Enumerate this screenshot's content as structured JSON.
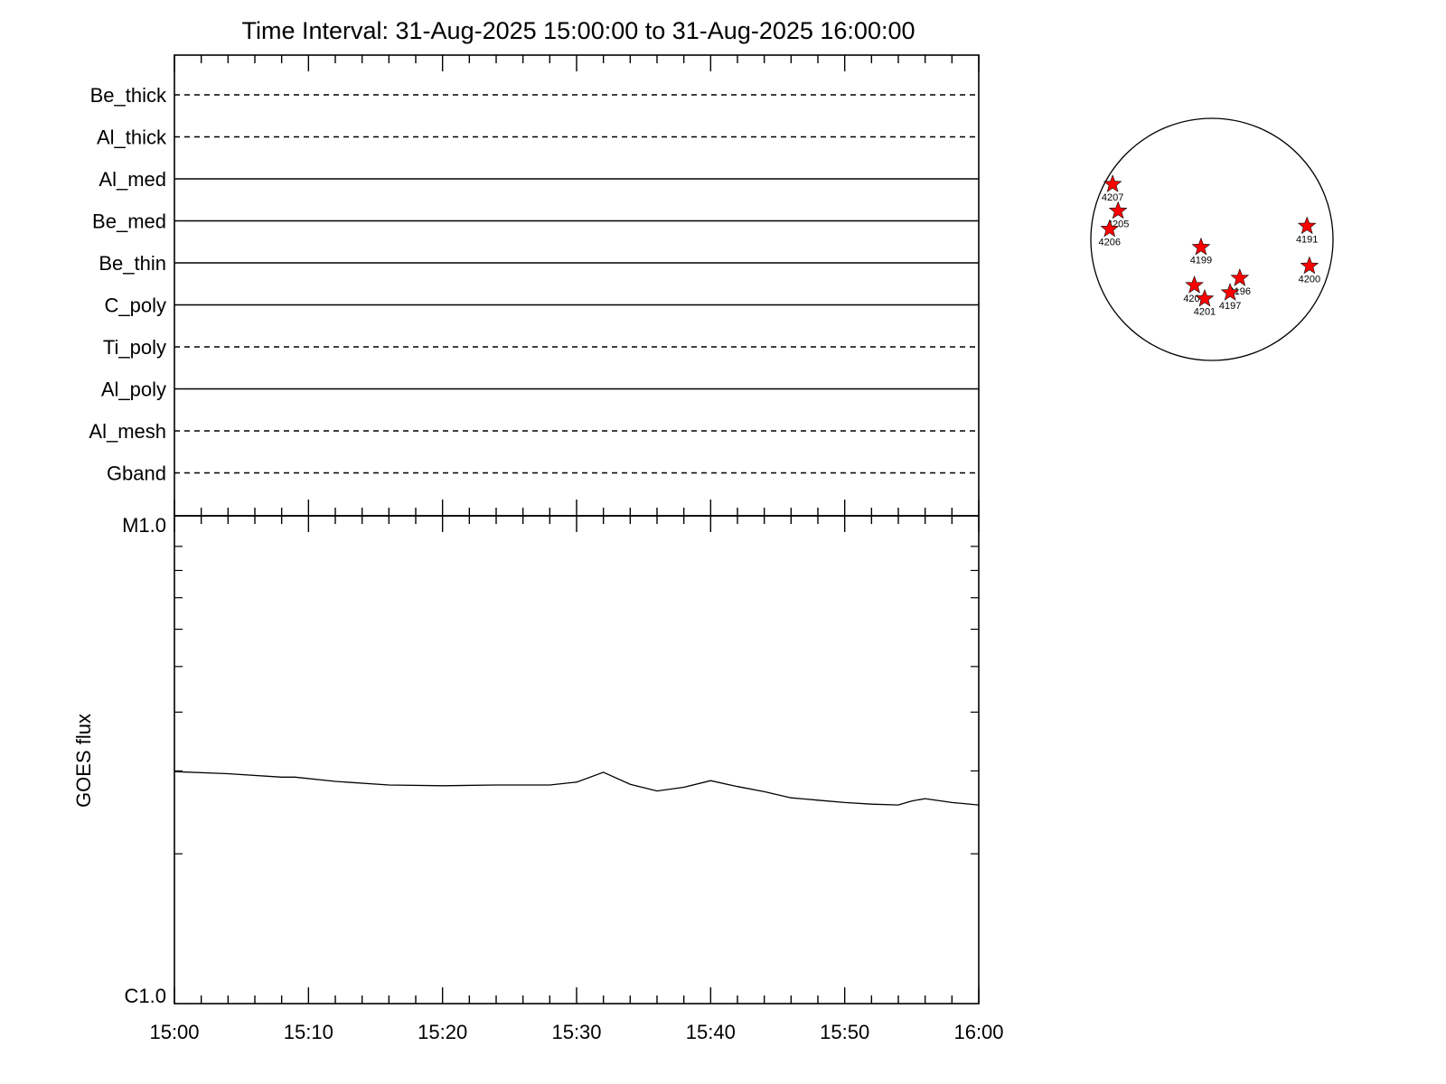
{
  "chart_data": [
    {
      "type": "timeline",
      "title": "Time Interval: 31-Aug-2025 15:00:00 to 31-Aug-2025 16:00:00",
      "channels": [
        {
          "name": "Be_thick",
          "style": "dashed"
        },
        {
          "name": "Al_thick",
          "style": "dashed"
        },
        {
          "name": "Al_med",
          "style": "solid"
        },
        {
          "name": "Be_med",
          "style": "solid"
        },
        {
          "name": "Be_thin",
          "style": "solid"
        },
        {
          "name": "C_poly",
          "style": "solid"
        },
        {
          "name": "Ti_poly",
          "style": "dashed"
        },
        {
          "name": "Al_poly",
          "style": "solid"
        },
        {
          "name": "Al_mesh",
          "style": "dashed"
        },
        {
          "name": "Gband",
          "style": "dashed"
        }
      ]
    },
    {
      "type": "line",
      "ylabel": "GOES flux",
      "y_scale": "log",
      "ylim": [
        1e-06,
        1e-05
      ],
      "y_tick_labels": [
        "C1.0",
        "M1.0"
      ],
      "xlim": [
        "15:00",
        "16:00"
      ],
      "x_tick_labels": [
        "15:00",
        "15:10",
        "15:20",
        "15:30",
        "15:40",
        "15:50",
        "16:00"
      ],
      "line_color": "#000000",
      "series": [
        {
          "x": [
            "15:00",
            "15:04",
            "15:08",
            "15:09",
            "15:12",
            "15:16",
            "15:20",
            "15:24",
            "15:28",
            "15:30",
            "15:32",
            "15:34",
            "15:36",
            "15:38",
            "15:40",
            "15:42",
            "15:44",
            "15:46",
            "15:48",
            "15:50",
            "15:52",
            "15:54",
            "15:55",
            "15:56",
            "15:58",
            "16:00"
          ],
          "values": [
            2.99e-06,
            2.96e-06,
            2.91e-06,
            2.91e-06,
            2.85e-06,
            2.8e-06,
            2.79e-06,
            2.8e-06,
            2.8e-06,
            2.84e-06,
            2.98e-06,
            2.81e-06,
            2.72e-06,
            2.77e-06,
            2.86e-06,
            2.78e-06,
            2.71e-06,
            2.63e-06,
            2.6e-06,
            2.57e-06,
            2.55e-06,
            2.54e-06,
            2.59e-06,
            2.62e-06,
            2.57e-06,
            2.54e-06
          ]
        }
      ]
    },
    {
      "type": "scatter",
      "description_markers": "star",
      "marker_color": "#ff0000",
      "xlim": [
        -1000,
        1000
      ],
      "ylim": [
        -1000,
        1000
      ],
      "points": [
        {
          "label": "4207",
          "x": -820,
          "y": 455
        },
        {
          "label": "4205",
          "x": -775,
          "y": 235
        },
        {
          "label": "4206",
          "x": -845,
          "y": 85
        },
        {
          "label": "4199",
          "x": -90,
          "y": -65
        },
        {
          "label": "4191",
          "x": 785,
          "y": 110
        },
        {
          "label": "4200",
          "x": 805,
          "y": -220
        },
        {
          "label": "4196",
          "x": 230,
          "y": -320
        },
        {
          "label": "4202",
          "x": -145,
          "y": -380
        },
        {
          "label": "4197",
          "x": 150,
          "y": -440
        },
        {
          "label": "4201",
          "x": -60,
          "y": -490
        }
      ]
    }
  ]
}
